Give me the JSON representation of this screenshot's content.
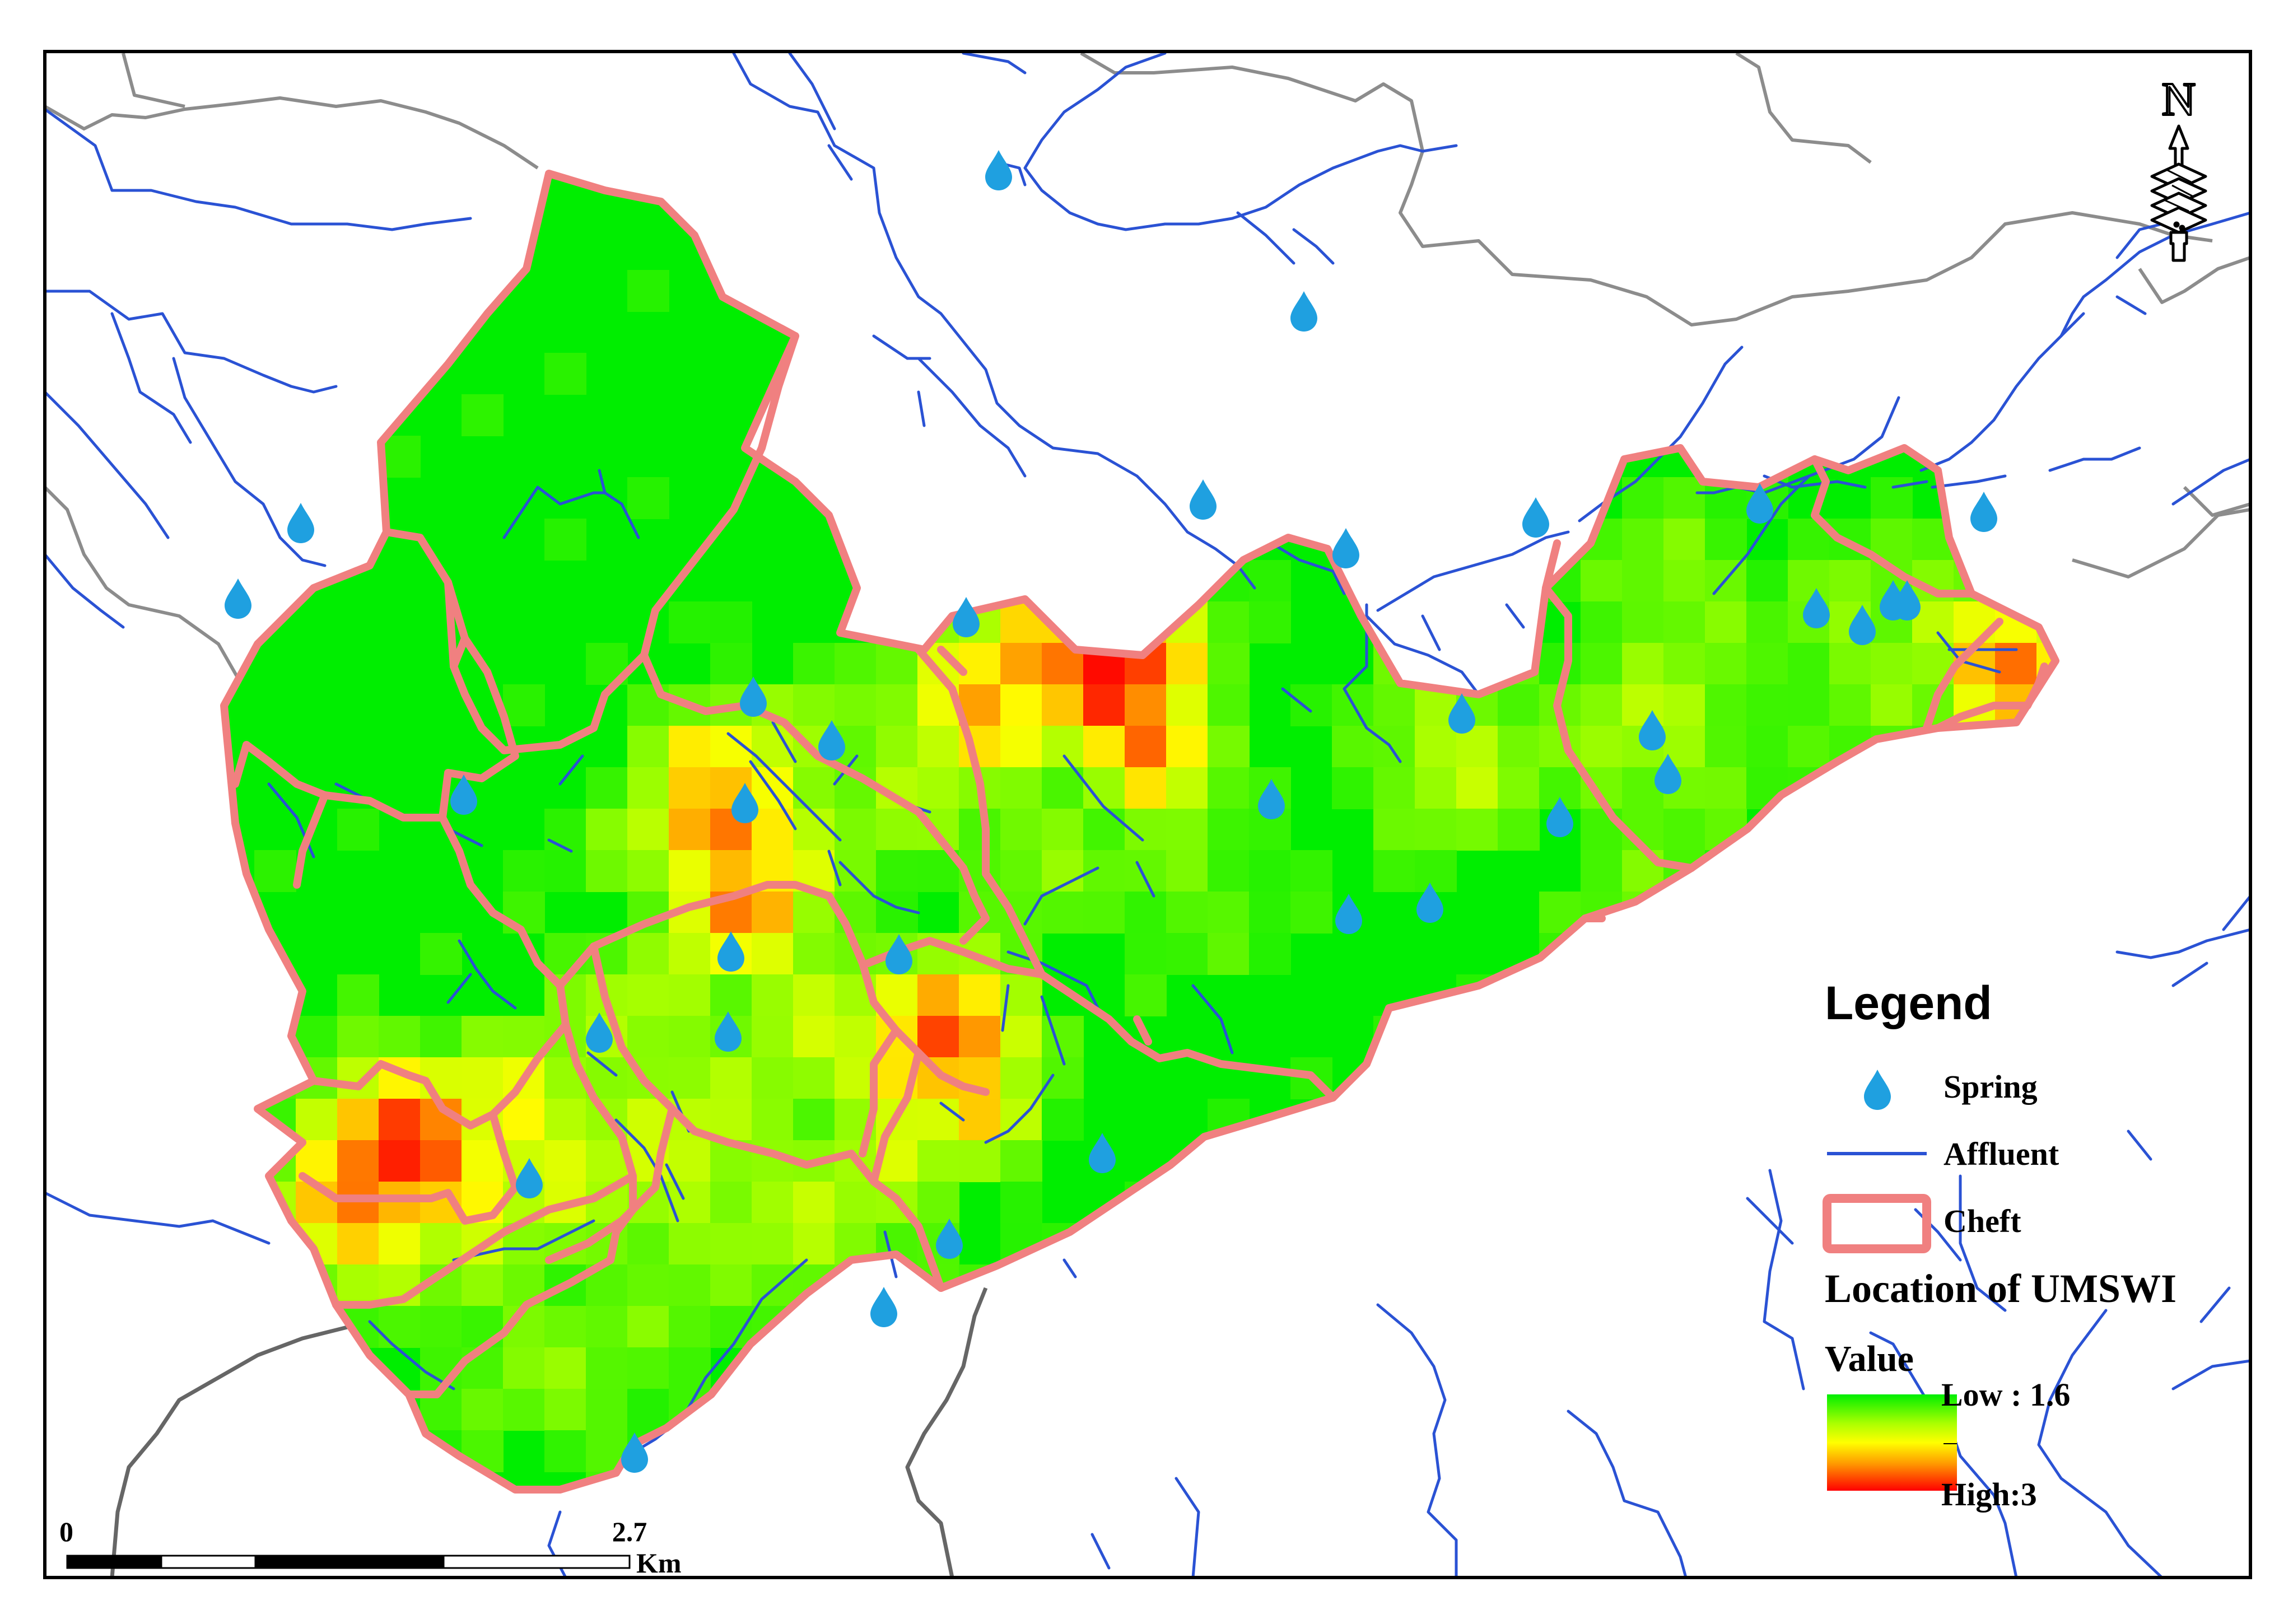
{
  "map": {
    "legend": {
      "title": "Legend",
      "items": [
        {
          "id": "spring",
          "label": "Spring",
          "symbol": "water-drop-icon",
          "color": "#1fa0e0"
        },
        {
          "id": "affluent",
          "label": "Affluent",
          "symbol": "line",
          "color": "#2a52d4"
        },
        {
          "id": "cheft",
          "label": "Cheft",
          "symbol": "outline-rect",
          "color": "#f08080"
        }
      ],
      "layer_title": "Location of UMSWI",
      "value_title": "Value",
      "low_label": "Low : 1.6",
      "high_label": "High:3",
      "ramp_colors": [
        "#00ee00",
        "#aaff00",
        "#ffff00",
        "#ff9900",
        "#ff0000"
      ]
    },
    "value_range": {
      "low": 1.6,
      "high": 3
    },
    "scale_bar": {
      "start_label": "0",
      "mid_label": "2.7",
      "unit": "Km"
    },
    "north_arrow": {
      "label": "N"
    },
    "colors": {
      "background": "#ffffff",
      "frame": "#000000",
      "boundary_gray": "#8c8c8c",
      "boundary_dark": "#666666",
      "river": "#2a52d4",
      "cheft_outline": "#f08080",
      "spring": "#1fa0e0"
    }
  }
}
